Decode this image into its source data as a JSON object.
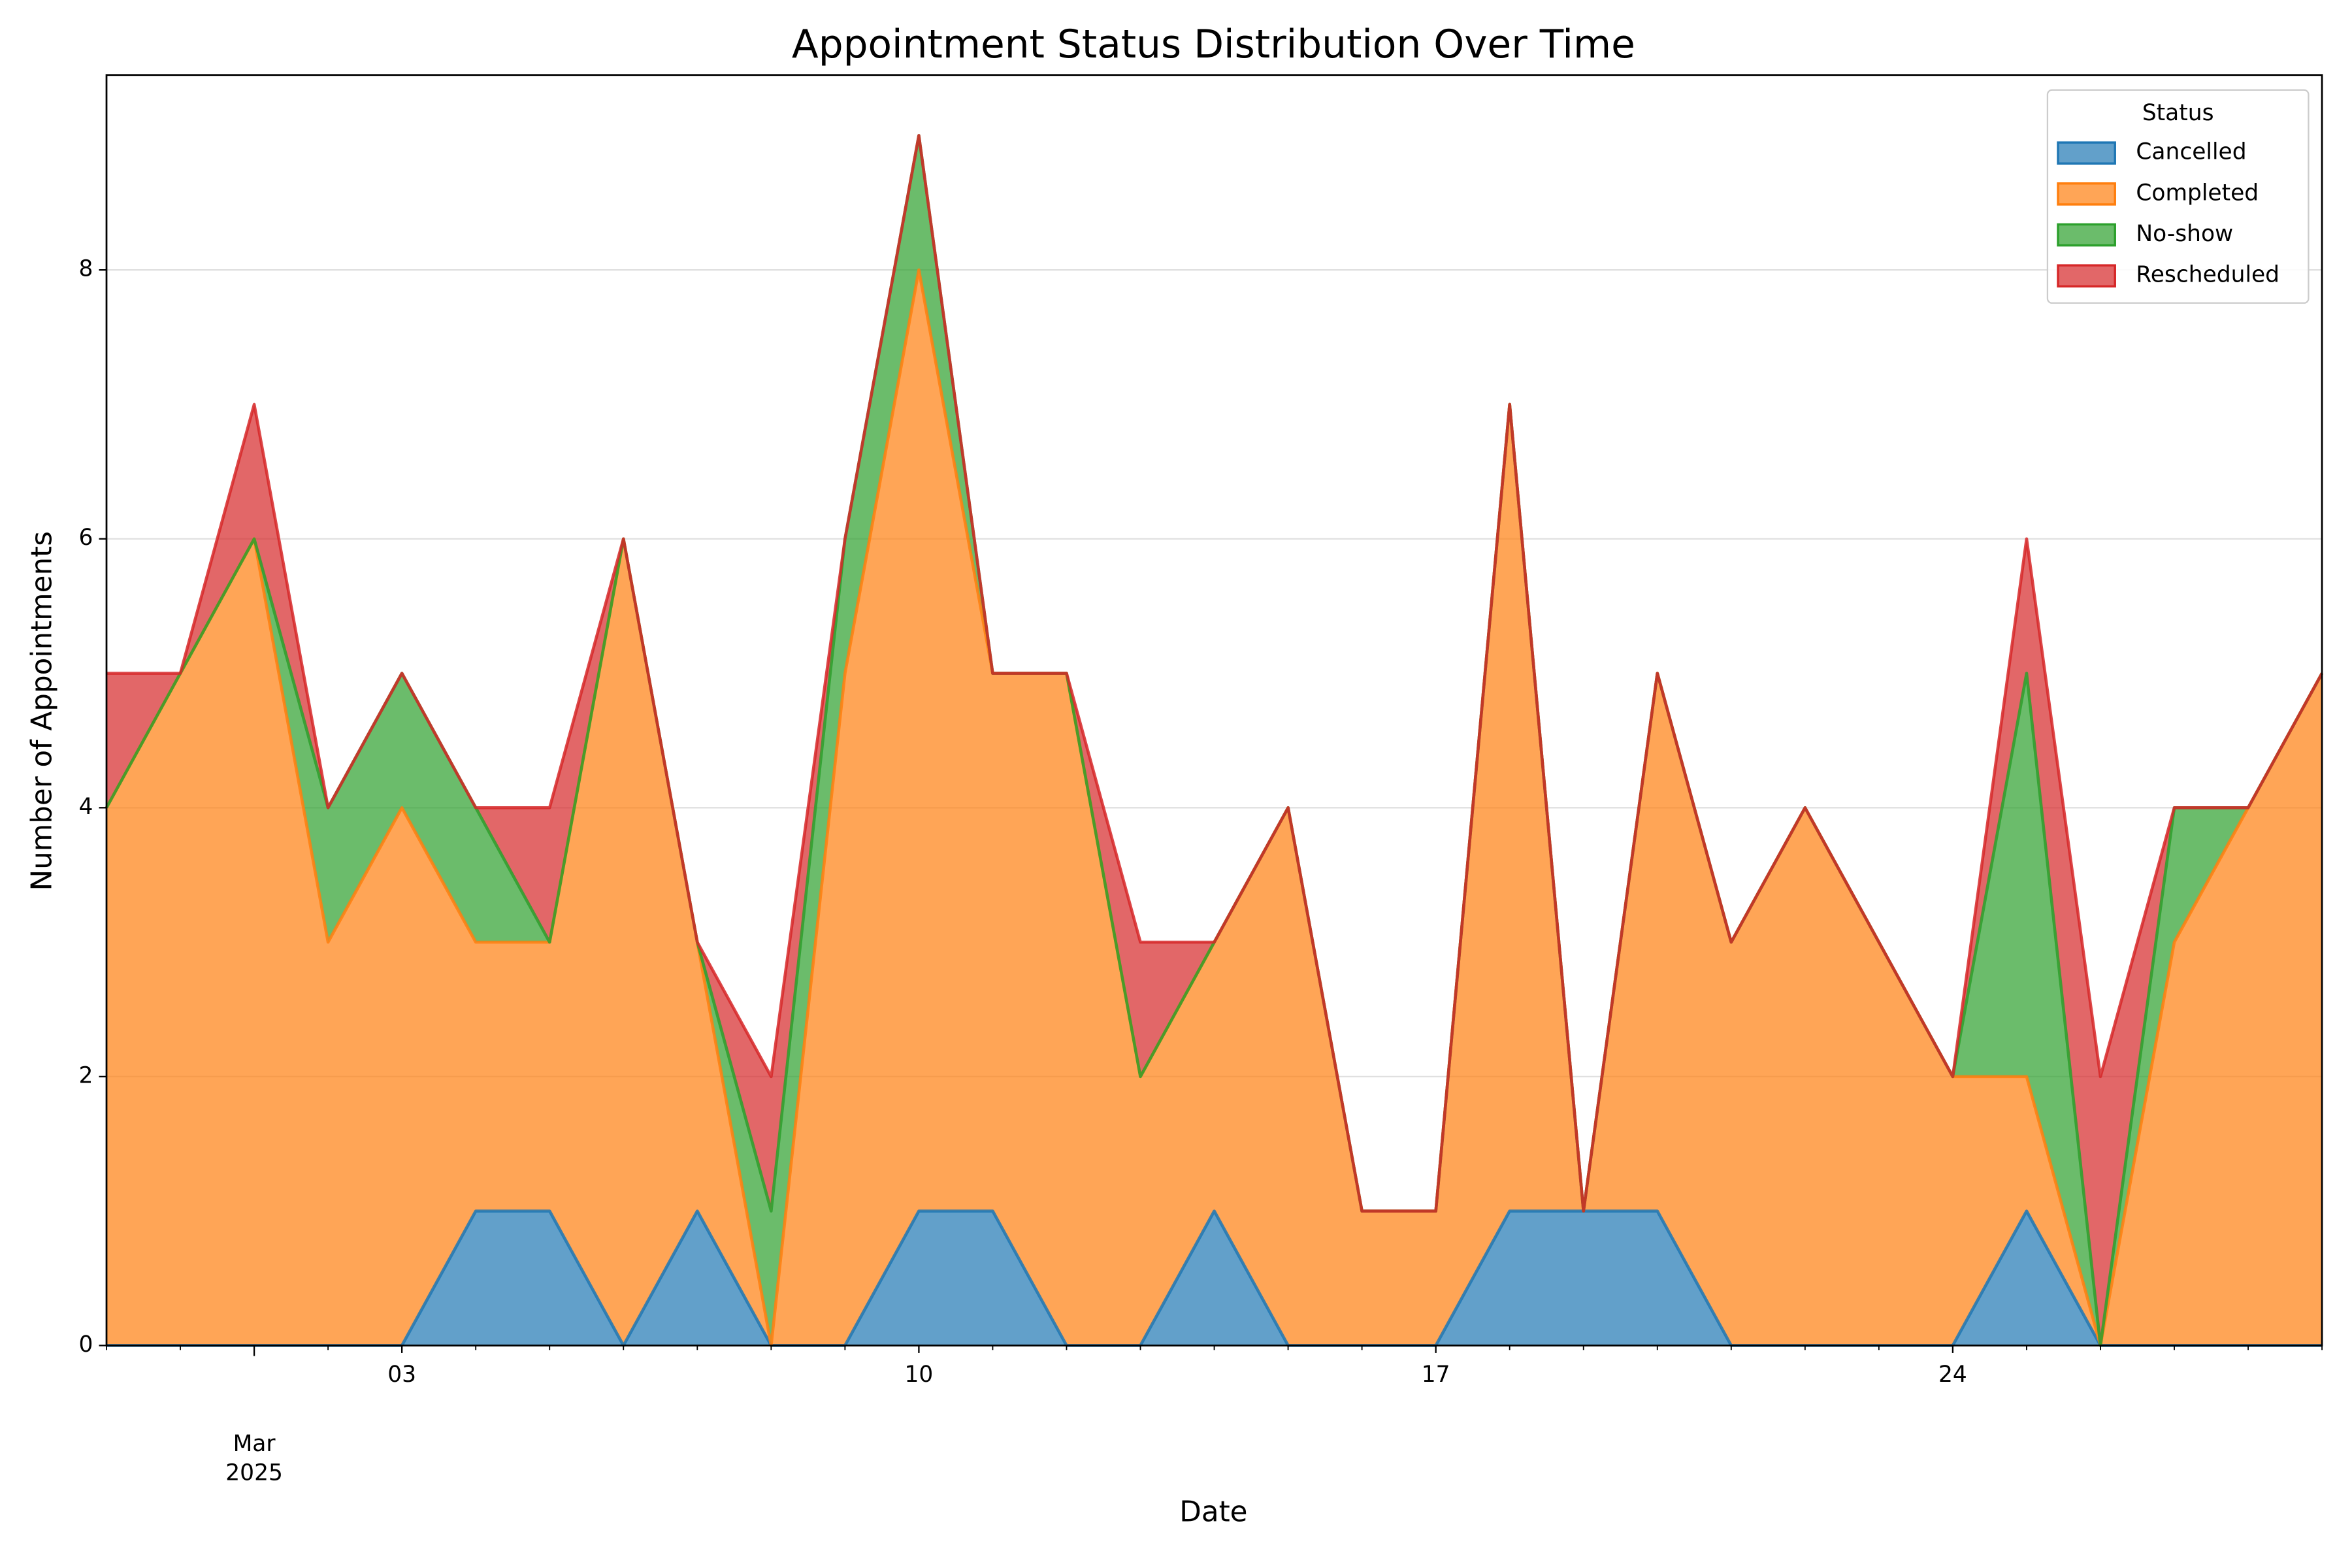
{
  "chart_data": {
    "type": "stacked_area",
    "title": "Appointment Status Distribution Over Time",
    "xlabel": "Date",
    "ylabel": "Number of Appointments",
    "x": [
      "2025-02-27",
      "2025-02-28",
      "2025-03-01",
      "2025-03-02",
      "2025-03-03",
      "2025-03-04",
      "2025-03-05",
      "2025-03-06",
      "2025-03-07",
      "2025-03-08",
      "2025-03-09",
      "2025-03-10",
      "2025-03-11",
      "2025-03-12",
      "2025-03-13",
      "2025-03-14",
      "2025-03-15",
      "2025-03-16",
      "2025-03-17",
      "2025-03-18",
      "2025-03-19",
      "2025-03-20",
      "2025-03-21",
      "2025-03-22",
      "2025-03-23",
      "2025-03-24",
      "2025-03-25",
      "2025-03-26",
      "2025-03-27",
      "2025-03-28",
      "2025-03-29"
    ],
    "series": [
      {
        "name": "Cancelled",
        "color": "#1f77b4",
        "values": [
          0,
          0,
          0,
          0,
          0,
          1,
          1,
          0,
          1,
          0,
          0,
          1,
          1,
          0,
          0,
          1,
          0,
          0,
          0,
          1,
          1,
          1,
          0,
          0,
          0,
          0,
          1,
          0,
          0,
          0,
          0
        ]
      },
      {
        "name": "Completed",
        "color": "#ff7f0e",
        "values": [
          4,
          5,
          6,
          3,
          4,
          2,
          2,
          6,
          2,
          0,
          5,
          7,
          4,
          5,
          2,
          2,
          4,
          1,
          1,
          6,
          0,
          4,
          3,
          4,
          3,
          2,
          1,
          0,
          3,
          4,
          5
        ]
      },
      {
        "name": "No-show",
        "color": "#2ca02c",
        "values": [
          0,
          0,
          0,
          1,
          1,
          1,
          0,
          0,
          0,
          1,
          1,
          1,
          0,
          0,
          0,
          0,
          0,
          0,
          0,
          0,
          0,
          0,
          0,
          0,
          0,
          0,
          3,
          0,
          1,
          0,
          0
        ]
      },
      {
        "name": "Rescheduled",
        "color": "#d62728",
        "values": [
          1,
          0,
          1,
          0,
          0,
          0,
          1,
          0,
          0,
          1,
          0,
          0,
          0,
          0,
          1,
          0,
          0,
          0,
          0,
          0,
          0,
          0,
          0,
          0,
          0,
          0,
          1,
          2,
          0,
          0,
          0
        ]
      }
    ],
    "legend_title": "Status",
    "legend": "upper right",
    "xlim": [
      "2025-02-27",
      "2025-03-29"
    ],
    "xticks": [
      {
        "value": "2025-03-01",
        "label": "Mar\n2025"
      },
      {
        "value": "2025-03-03",
        "label": "03"
      },
      {
        "value": "2025-03-10",
        "label": "10"
      },
      {
        "value": "2025-03-17",
        "label": "17"
      },
      {
        "value": "2025-03-24",
        "label": "24"
      }
    ],
    "ylim": [
      0,
      9.45
    ],
    "yticks": [
      0,
      2,
      4,
      6,
      8
    ],
    "grid": true
  }
}
